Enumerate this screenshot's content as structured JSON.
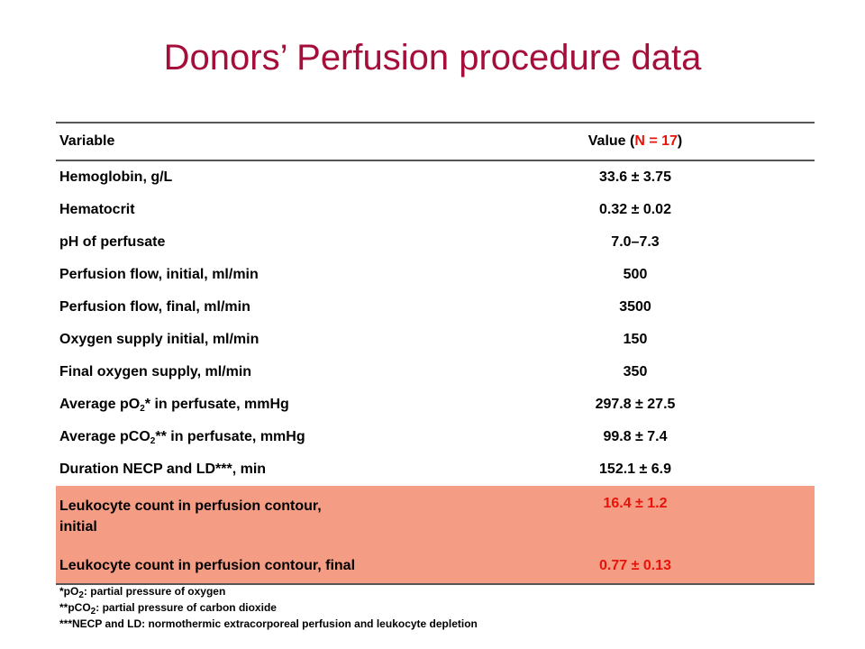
{
  "title": "Donors’ Perfusion procedure data",
  "header": {
    "variable": "Variable",
    "value_prefix": "Value (",
    "value_n": "N = 17",
    "value_suffix": ")"
  },
  "rows": [
    {
      "var": "Hemoglobin, g/L",
      "val": "33.6 ± 3.75"
    },
    {
      "var": "Hematocrit",
      "val": "0.32 ± 0.02"
    },
    {
      "var": "pH of perfusate",
      "val": "7.0–7.3"
    },
    {
      "var": "Perfusion flow, initial, ml/min",
      "val": "500"
    },
    {
      "var": "Perfusion flow, final, ml/min",
      "val": "3500"
    },
    {
      "var": "Oxygen supply initial, ml/min",
      "val": "150"
    },
    {
      "var": "Final oxygen supply, ml/min",
      "val": "350"
    },
    {
      "var_pre": "Average pO",
      "var_sub": "2",
      "var_post": "* in perfusate, mmHg",
      "val": "297.8 ± 27.5"
    },
    {
      "var_pre": "Average pCO",
      "var_sub": "2",
      "var_post": "** in perfusate, mmHg",
      "val": "99.8 ± 7.4"
    },
    {
      "var": "Duration NECP and LD***, min",
      "val": "152.1 ± 6.9"
    },
    {
      "var_line1": "Leukocyte count in perfusion contour,",
      "var_line2": "initial",
      "val": "16.4 ± 1.2"
    },
    {
      "var": "Leukocyte count in perfusion contour, final",
      "val": "0.77 ± 0.13"
    }
  ],
  "footnotes": [
    {
      "pre": "*pO",
      "sub": "2",
      "post": ": partial pressure of oxygen"
    },
    {
      "pre": "**pCO",
      "sub": "2",
      "post": ": partial pressure of carbon dioxide"
    },
    {
      "text": "***NECP and LD: normothermic extracorporeal perfusion and leukocyte depletion"
    }
  ],
  "colors": {
    "title": "#a50e3a",
    "highlight_bg": "#f59c84",
    "highlight_text": "#e8130a"
  }
}
